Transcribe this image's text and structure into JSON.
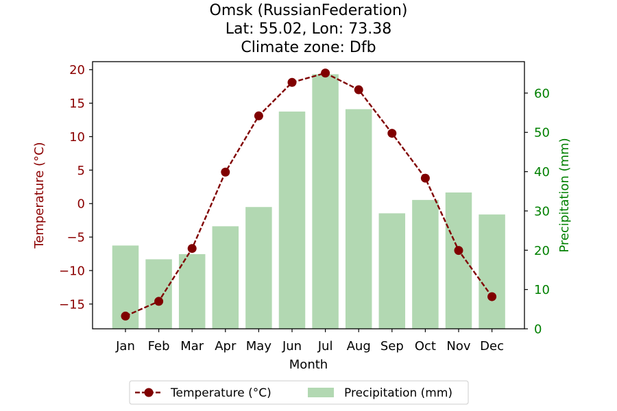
{
  "chart_data": {
    "type": "bar+line",
    "title_lines": [
      "Omsk (RussianFederation)",
      "Lat: 55.02, Lon: 73.38",
      "Climate zone: Dfb"
    ],
    "xlabel": "Month",
    "ylabel_left": "Temperature (°C)",
    "ylabel_right": "Precipitation (mm)",
    "categories": [
      "Jan",
      "Feb",
      "Mar",
      "Apr",
      "May",
      "Jun",
      "Jul",
      "Aug",
      "Sep",
      "Oct",
      "Nov",
      "Dec"
    ],
    "series": [
      {
        "name": "Temperature (°C)",
        "axis": "left",
        "kind": "line",
        "style": "dashed-markers",
        "color": "#800000",
        "values": [
          -16.8,
          -14.6,
          -6.7,
          4.7,
          13.1,
          18.1,
          19.5,
          17.0,
          10.5,
          3.8,
          -7.0,
          -13.9
        ]
      },
      {
        "name": "Precipitation (mm)",
        "axis": "right",
        "kind": "bar",
        "color": "#b2d8b2",
        "values": [
          21.2,
          17.7,
          19.0,
          26.1,
          31.0,
          55.3,
          64.8,
          55.9,
          29.4,
          32.8,
          34.7,
          29.1
        ]
      }
    ],
    "ylim_left": [
      -18.7,
      21.2
    ],
    "ylim_right": [
      0,
      68.0
    ],
    "yticks_left": [
      "−15",
      "−10",
      "−5",
      "0",
      "5",
      "10",
      "15",
      "20"
    ],
    "yticks_right": [
      "0",
      "10",
      "20",
      "30",
      "40",
      "50",
      "60"
    ],
    "left_axis_color": "#8b0000",
    "right_axis_color": "#008000",
    "legend_position": "bottom-center",
    "grid": false
  }
}
